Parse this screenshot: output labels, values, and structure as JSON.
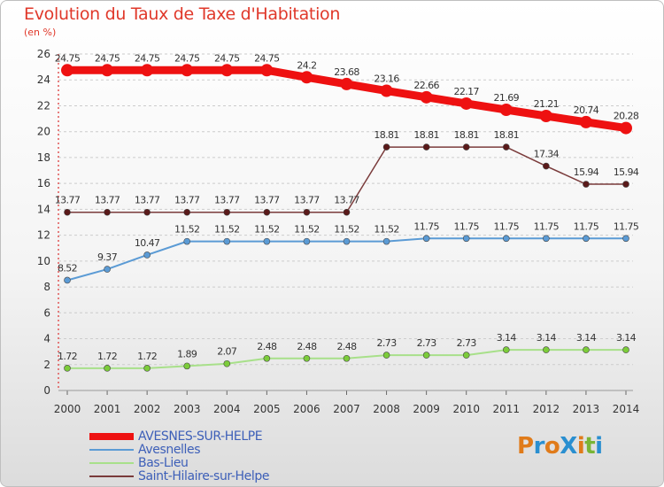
{
  "title": "Evolution du Taux de Taxe d'Habitation",
  "subtitle": "(en %)",
  "logo": {
    "text": "ProXiti",
    "colors": [
      "#e07b1a",
      "#2a8fd0",
      "#e07b1a",
      "#2a8fd0",
      "#e07b1a",
      "#79b536",
      "#2a8fd0"
    ]
  },
  "chart_data": {
    "type": "line",
    "x": [
      "2000",
      "2001",
      "2002",
      "2003",
      "2004",
      "2005",
      "2006",
      "2007",
      "2008",
      "2009",
      "2010",
      "2011",
      "2012",
      "2013",
      "2014"
    ],
    "ylim": [
      0,
      26
    ],
    "yticks": [
      0,
      2,
      4,
      6,
      8,
      10,
      12,
      14,
      16,
      18,
      20,
      22,
      24,
      26
    ],
    "grid": "horizontal dashed",
    "legend_position": "bottom-left",
    "series": [
      {
        "name": "AVESNES-SUR-HELPE",
        "color": "#ee1111",
        "marker_color": "#ee1111",
        "width": 9,
        "marker_radius": 7,
        "values": [
          24.75,
          24.75,
          24.75,
          24.75,
          24.75,
          24.75,
          24.2,
          23.68,
          23.16,
          22.66,
          22.17,
          21.69,
          21.21,
          20.74,
          20.28
        ],
        "labels": [
          "24.75",
          "24.75",
          "24.75",
          "24.75",
          "24.75",
          "24.75",
          "24.2",
          "23.68",
          "23.16",
          "22.66",
          "22.17",
          "21.69",
          "21.21",
          "20.74",
          "20.28"
        ]
      },
      {
        "name": "Avesnelles",
        "color": "#5b9bd5",
        "marker_color": "#5b9bd5",
        "width": 2,
        "marker_radius": 3.5,
        "values": [
          8.52,
          9.37,
          10.47,
          11.52,
          11.52,
          11.52,
          11.52,
          11.52,
          11.52,
          11.75,
          11.75,
          11.75,
          11.75,
          11.75,
          11.75
        ],
        "labels": [
          "8.52",
          "9.37",
          "10.47",
          "11.52",
          "11.52",
          "11.52",
          "11.52",
          "11.52",
          "11.52",
          "11.75",
          "11.75",
          "11.75",
          "11.75",
          "11.75",
          "11.75"
        ]
      },
      {
        "name": "Bas-Lieu",
        "color": "#a8e08a",
        "marker_color": "#7ccc3a",
        "width": 2,
        "marker_radius": 3.5,
        "values": [
          1.72,
          1.72,
          1.72,
          1.89,
          2.07,
          2.48,
          2.48,
          2.48,
          2.73,
          2.73,
          2.73,
          3.14,
          3.14,
          3.14,
          3.14
        ],
        "labels": [
          "1.72",
          "1.72",
          "1.72",
          "1.89",
          "2.07",
          "2.48",
          "2.48",
          "2.48",
          "2.73",
          "2.73",
          "2.73",
          "3.14",
          "3.14",
          "3.14",
          "3.14"
        ]
      },
      {
        "name": "Saint-Hilaire-sur-Helpe",
        "color": "#7a3b3b",
        "marker_color": "#5a1a1a",
        "width": 1.5,
        "marker_radius": 3.5,
        "values": [
          13.77,
          13.77,
          13.77,
          13.77,
          13.77,
          13.77,
          13.77,
          13.77,
          18.81,
          18.81,
          18.81,
          18.81,
          17.34,
          15.94,
          15.94
        ],
        "labels": [
          "13.77",
          "13.77",
          "13.77",
          "13.77",
          "13.77",
          "13.77",
          "13.77",
          "13.77",
          "18.81",
          "18.81",
          "18.81",
          "18.81",
          "17.34",
          "15.94",
          "15.94"
        ]
      }
    ]
  }
}
